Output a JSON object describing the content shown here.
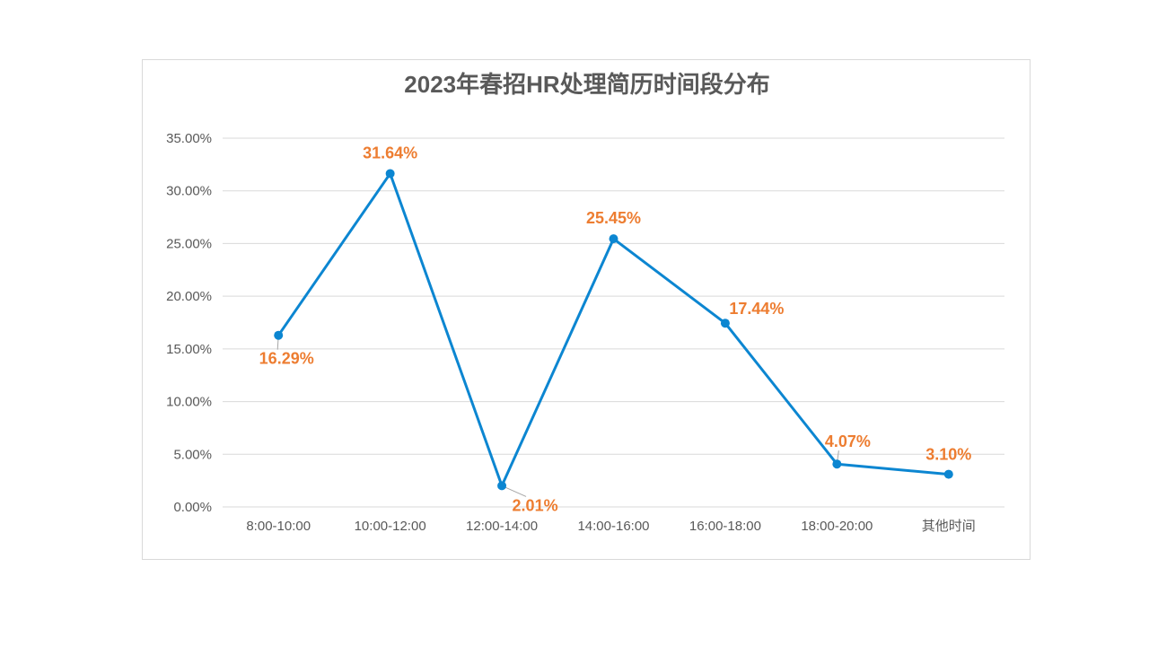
{
  "chart_data": {
    "type": "line",
    "title": "2023年春招HR处理简历时间段分布",
    "categories": [
      "8:00-10:00",
      "10:00-12:00",
      "12:00-14:00",
      "14:00-16:00",
      "16:00-18:00",
      "18:00-20:00",
      "其他时间"
    ],
    "series": [
      {
        "values": [
          16.29,
          31.64,
          2.01,
          25.45,
          17.44,
          4.07,
          3.1
        ],
        "data_labels": [
          "16.29%",
          "31.64%",
          "2.01%",
          "25.45%",
          "17.44%",
          "4.07%",
          "3.10%"
        ]
      }
    ],
    "y_ticks": [
      "0.00%",
      "5.00%",
      "10.00%",
      "15.00%",
      "20.00%",
      "25.00%",
      "30.00%",
      "35.00%"
    ],
    "ylim": [
      0,
      35
    ],
    "y_unit": "%",
    "grid": true,
    "legend": "none",
    "colors": {
      "line": "#0c86d1",
      "data_label": "#ed7d31",
      "leader_line": "#a6a6a6"
    }
  }
}
